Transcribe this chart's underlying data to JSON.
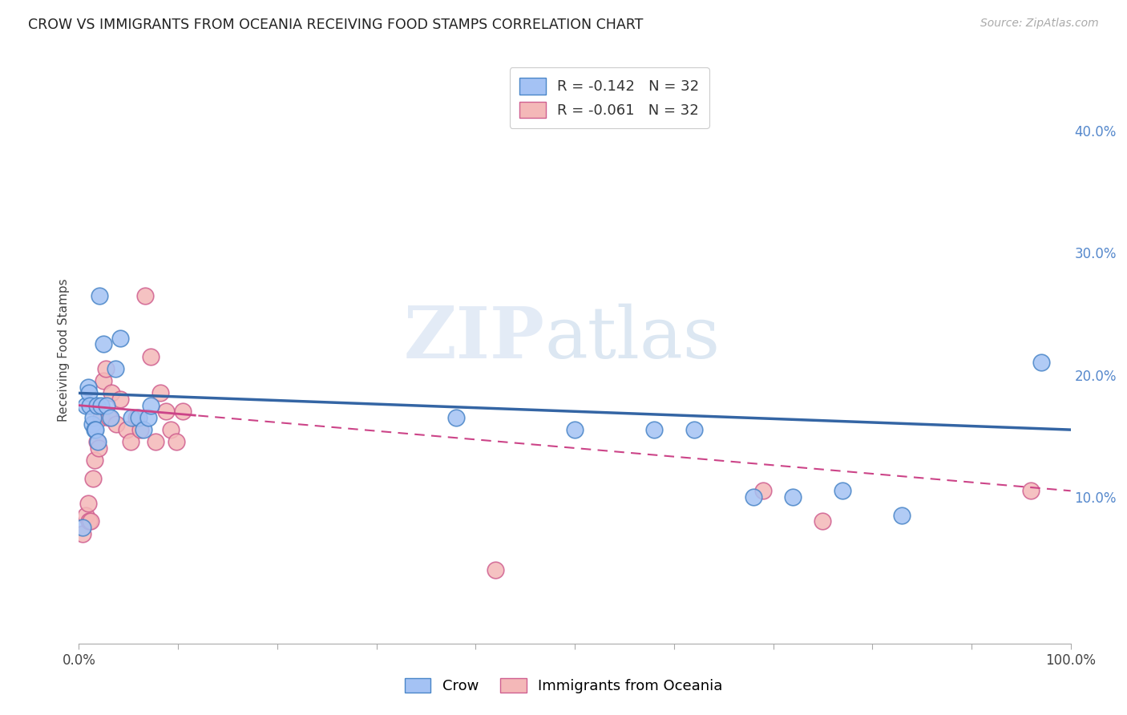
{
  "title": "CROW VS IMMIGRANTS FROM OCEANIA RECEIVING FOOD STAMPS CORRELATION CHART",
  "source": "Source: ZipAtlas.com",
  "ylabel": "Receiving Food Stamps",
  "ylabel_ticks": [
    "10.0%",
    "20.0%",
    "30.0%",
    "40.0%"
  ],
  "ylabel_tick_vals": [
    0.1,
    0.2,
    0.3,
    0.4
  ],
  "xlim": [
    0.0,
    1.0
  ],
  "ylim": [
    -0.02,
    0.46
  ],
  "crow_color": "#a4c2f4",
  "oceania_color": "#f4b8b8",
  "crow_edge_color": "#4a86c8",
  "oceania_edge_color": "#d06090",
  "crow_line_color": "#3465a4",
  "oceania_line_color": "#cc4488",
  "legend_crow_R": "-0.142",
  "legend_crow_N": "32",
  "legend_oceania_R": "-0.061",
  "legend_oceania_N": "32",
  "background_color": "#ffffff",
  "grid_color": "#cccccc",
  "crow_x": [
    0.004,
    0.007,
    0.009,
    0.01,
    0.011,
    0.013,
    0.014,
    0.016,
    0.017,
    0.018,
    0.019,
    0.021,
    0.022,
    0.025,
    0.028,
    0.032,
    0.037,
    0.042,
    0.053,
    0.06,
    0.065,
    0.07,
    0.072,
    0.38,
    0.5,
    0.58,
    0.62,
    0.68,
    0.72,
    0.77,
    0.83,
    0.97
  ],
  "crow_y": [
    0.075,
    0.175,
    0.19,
    0.185,
    0.175,
    0.16,
    0.165,
    0.155,
    0.155,
    0.175,
    0.145,
    0.265,
    0.175,
    0.225,
    0.175,
    0.165,
    0.205,
    0.23,
    0.165,
    0.165,
    0.155,
    0.165,
    0.175,
    0.165,
    0.155,
    0.155,
    0.155,
    0.1,
    0.1,
    0.105,
    0.085,
    0.21
  ],
  "oceania_x": [
    0.004,
    0.007,
    0.009,
    0.01,
    0.012,
    0.014,
    0.016,
    0.018,
    0.02,
    0.022,
    0.025,
    0.027,
    0.03,
    0.033,
    0.038,
    0.042,
    0.048,
    0.052,
    0.058,
    0.062,
    0.067,
    0.072,
    0.077,
    0.082,
    0.088,
    0.093,
    0.098,
    0.105,
    0.42,
    0.69,
    0.75,
    0.96
  ],
  "oceania_y": [
    0.07,
    0.085,
    0.095,
    0.08,
    0.08,
    0.115,
    0.13,
    0.145,
    0.14,
    0.165,
    0.195,
    0.205,
    0.165,
    0.185,
    0.16,
    0.18,
    0.155,
    0.145,
    0.165,
    0.155,
    0.265,
    0.215,
    0.145,
    0.185,
    0.17,
    0.155,
    0.145,
    0.17,
    0.04,
    0.105,
    0.08,
    0.105
  ],
  "crow_trend": [
    0.185,
    0.155
  ],
  "oceania_trend": [
    0.175,
    0.105
  ],
  "oceania_trend_dashed_start": 0.12
}
